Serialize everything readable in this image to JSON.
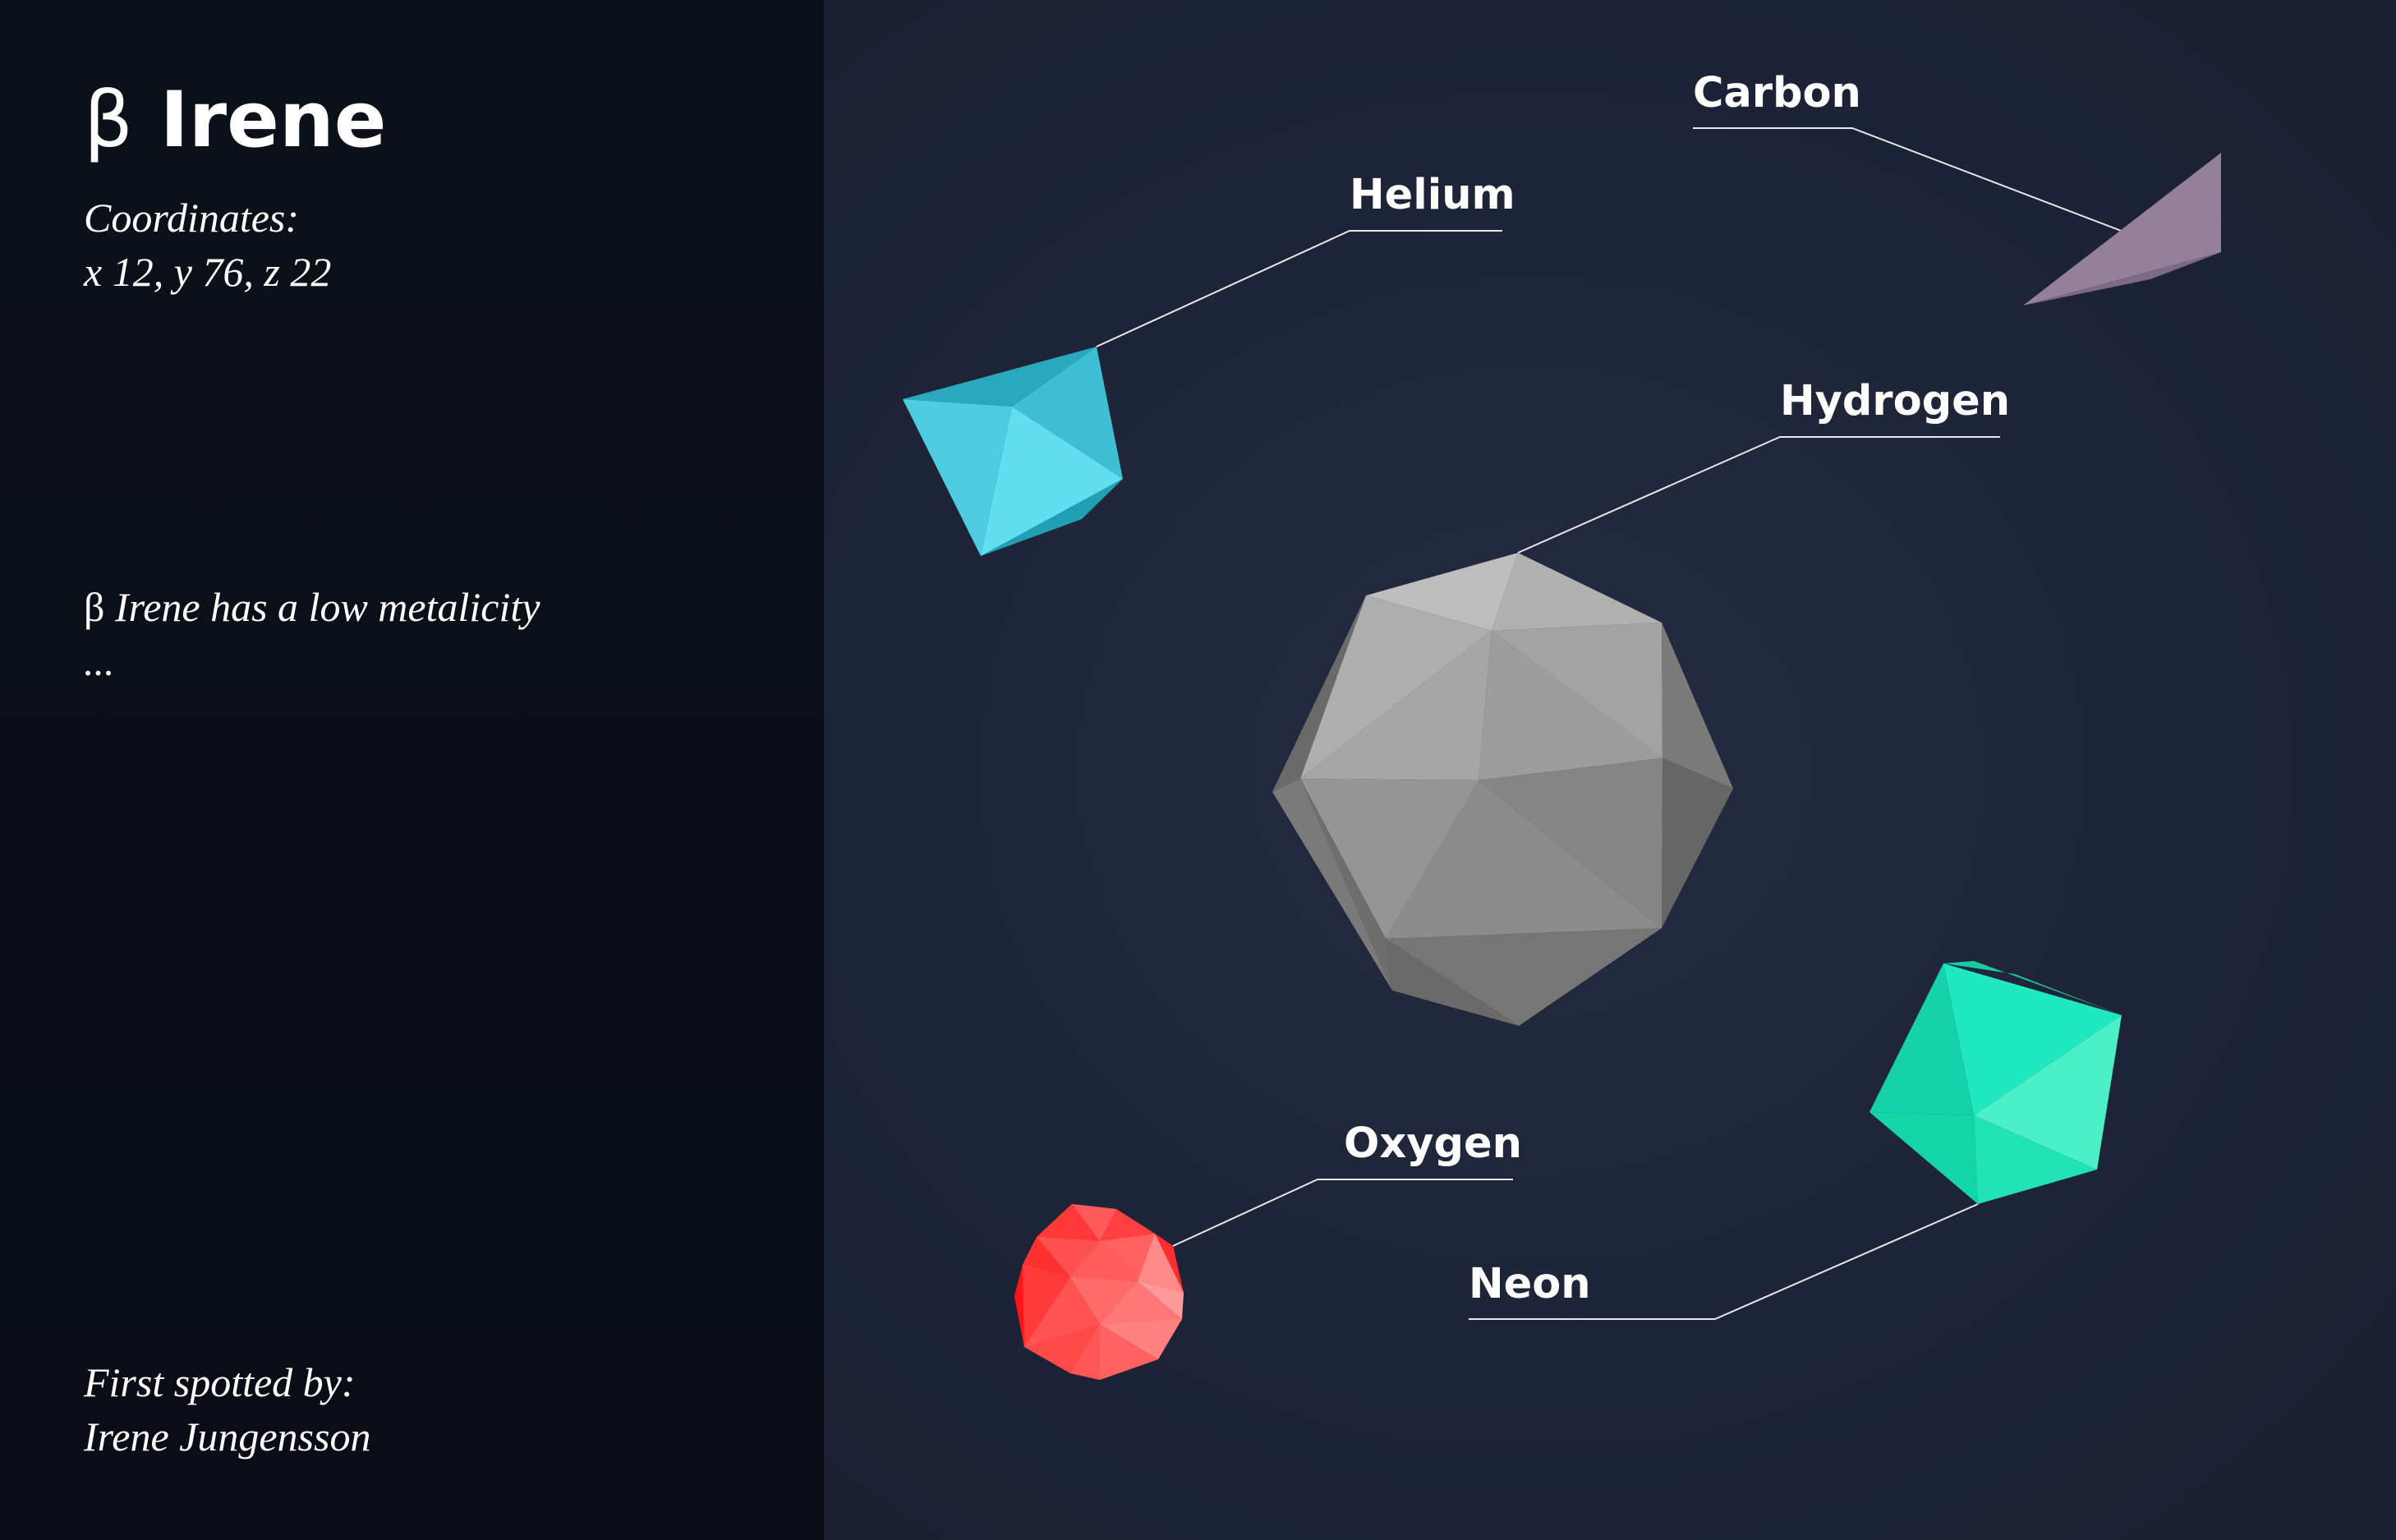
{
  "star": {
    "greek_letter": "β",
    "name": "Irene",
    "coordinates_label": "Coordinates:",
    "coordinates_value": "x 12, y 76, z 22",
    "description_greek": "β",
    "description_text": "Irene has a low metalicity",
    "description_ellipsis": "...",
    "spotted_label": "First spotted by:",
    "spotted_name": "Irene Jungensson"
  },
  "elements": [
    {
      "label": "Carbon",
      "color": "#957d98",
      "icon": "triangle-shard"
    },
    {
      "label": "Helium",
      "color": "#4fd0e6",
      "icon": "octahedron"
    },
    {
      "label": "Hydrogen",
      "color": "#9a9a9a",
      "icon": "icosahedron"
    },
    {
      "label": "Oxygen",
      "color": "#ff4a4a",
      "icon": "geodesic-sphere"
    },
    {
      "label": "Neon",
      "color": "#22e6b8",
      "icon": "octahedron"
    }
  ],
  "colors": {
    "sidebar_bg": "#0b0f17",
    "scene_bg": "#1f2539",
    "text": "#ffffff",
    "leader_line": "#e8e8e8"
  }
}
